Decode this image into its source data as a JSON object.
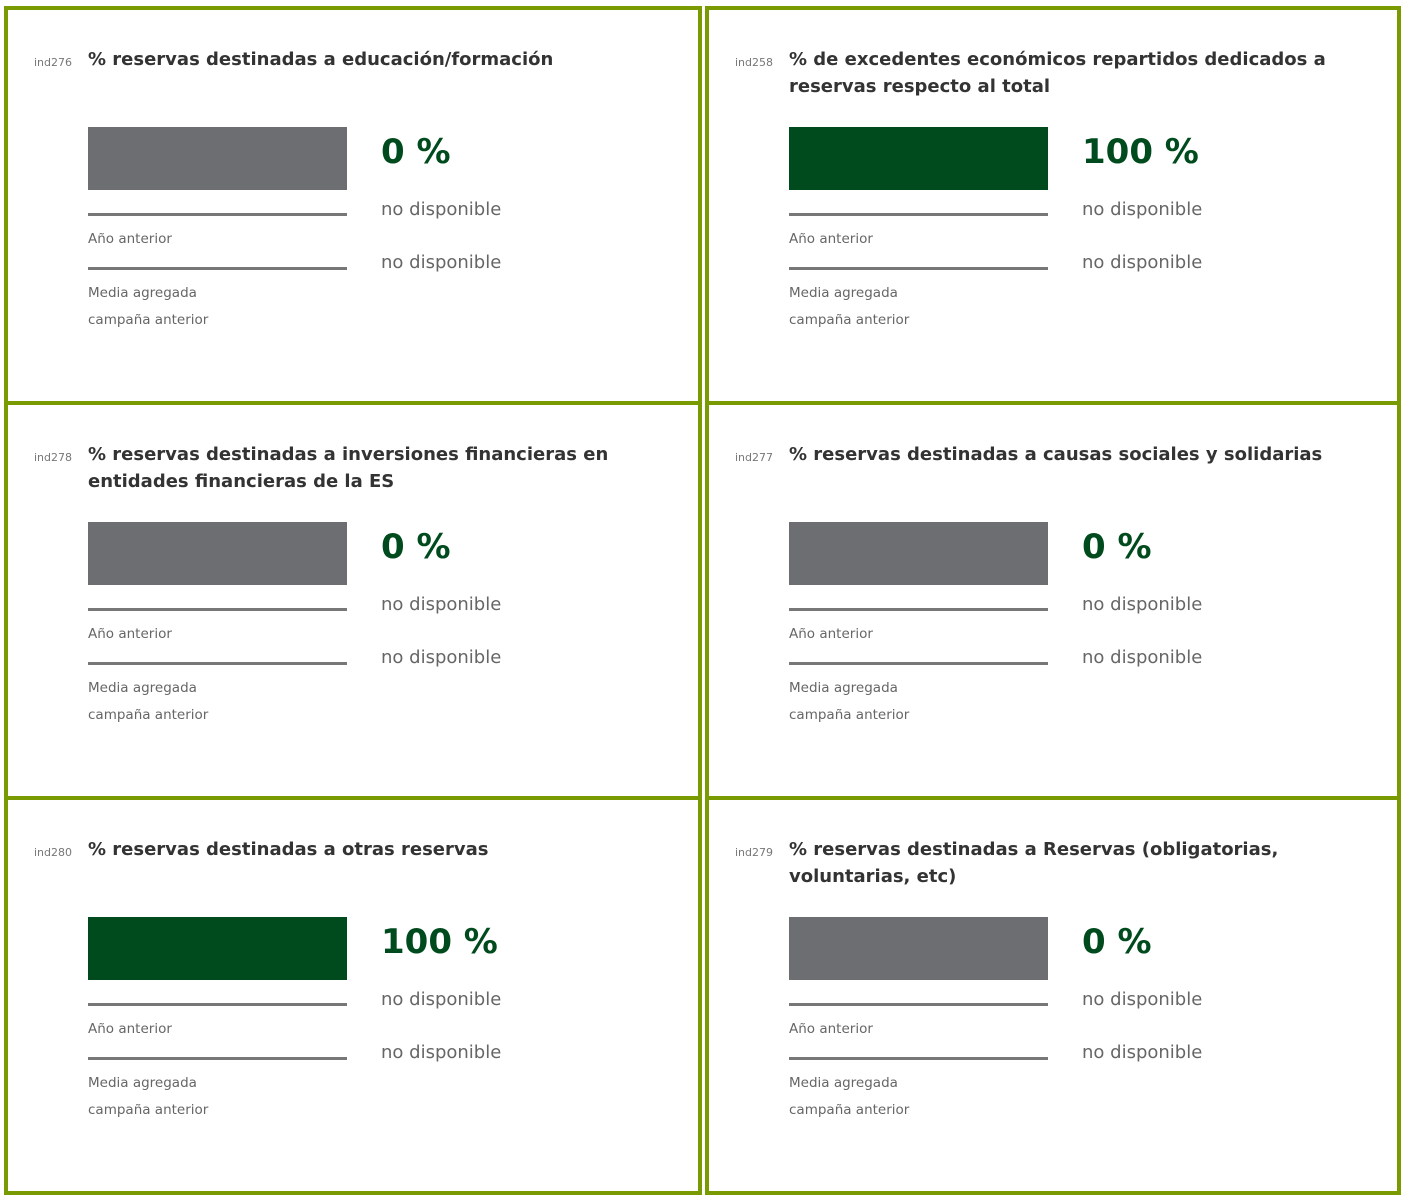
{
  "cards": [
    {
      "id": "ind276",
      "title": "% reservas destinadas a educación/formación",
      "value": 0,
      "value_label": "0 %",
      "previous": "no disponible",
      "previous_label": "Año anterior",
      "average": "no disponible",
      "average_label": "Media agregada campaña anterior"
    },
    {
      "id": "ind258",
      "title": "% de excedentes económicos repartidos dedicados a reservas respecto al total",
      "value": 100,
      "value_label": "100 %",
      "previous": "no disponible",
      "previous_label": "Año anterior",
      "average": "no disponible",
      "average_label": "Media agregada campaña anterior"
    },
    {
      "id": "ind278",
      "title": "% reservas destinadas a inversiones financieras en entidades financieras de la ES",
      "value": 0,
      "value_label": "0 %",
      "previous": "no disponible",
      "previous_label": "Año anterior",
      "average": "no disponible",
      "average_label": "Media agregada campaña anterior"
    },
    {
      "id": "ind277",
      "title": "% reservas destinadas a causas sociales y solidarias",
      "value": 0,
      "value_label": "0 %",
      "previous": "no disponible",
      "previous_label": "Año anterior",
      "average": "no disponible",
      "average_label": "Media agregada campaña anterior"
    },
    {
      "id": "ind280",
      "title": "% reservas destinadas a otras reservas",
      "value": 100,
      "value_label": "100 %",
      "previous": "no disponible",
      "previous_label": "Año anterior",
      "average": "no disponible",
      "average_label": "Media agregada campaña anterior"
    },
    {
      "id": "ind279",
      "title": "% reservas destinadas a Reservas (obligatorias, voluntarias, etc)",
      "value": 0,
      "value_label": "0 %",
      "previous": "no disponible",
      "previous_label": "Año anterior",
      "average": "no disponible",
      "average_label": "Media agregada campaña anterior"
    }
  ]
}
